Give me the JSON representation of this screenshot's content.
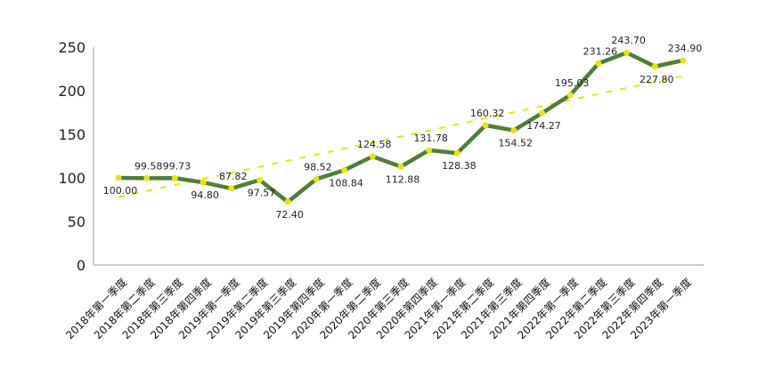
{
  "chart_data": {
    "type": "line",
    "title": "",
    "xlabel": "",
    "ylabel": "",
    "ylim": [
      0,
      250
    ],
    "yticks": [
      0,
      50,
      100,
      150,
      200,
      250
    ],
    "grid": false,
    "legend": "none",
    "categories": [
      "2018年第一季度",
      "2018年第二季度",
      "2018年第三季度",
      "2018年第四季度",
      "2019年第一季度",
      "2019年第二季度",
      "2019年第三季度",
      "2019年第四季度",
      "2020年第一季度",
      "2020年第二季度",
      "2020年第三季度",
      "2020年第四季度",
      "2021年第一季度",
      "2021年第二季度",
      "2021年第三季度",
      "2021年第四季度",
      "2022年第一季度",
      "2022年第二季度",
      "2022年第三季度",
      "2022年第四季度",
      "2023年第一季度"
    ],
    "series": [
      {
        "values": [
          100.0,
          99.58,
          99.73,
          94.8,
          87.82,
          97.57,
          72.4,
          98.52,
          108.84,
          124.58,
          112.88,
          131.78,
          128.38,
          160.32,
          154.52,
          174.27,
          195.03,
          231.26,
          243.7,
          227.8,
          234.9
        ],
        "labels": [
          "100.00",
          "99.58",
          "99.73",
          "94.80",
          "87.82",
          "97.57",
          "72.40",
          "98.52",
          "108.84",
          "124.58",
          "112.88",
          "131.78",
          "128.38",
          "160.32",
          "154.52",
          "174.27",
          "195.03",
          "231.26",
          "243.70",
          "227.80",
          "234.90"
        ],
        "color": "#4f7f35",
        "marker_color": "#e8e800"
      }
    ],
    "trendline": {
      "color": "#e8e800",
      "start": 78,
      "end": 217
    },
    "colors": {
      "axis": "#999999",
      "text": "#222222"
    }
  }
}
